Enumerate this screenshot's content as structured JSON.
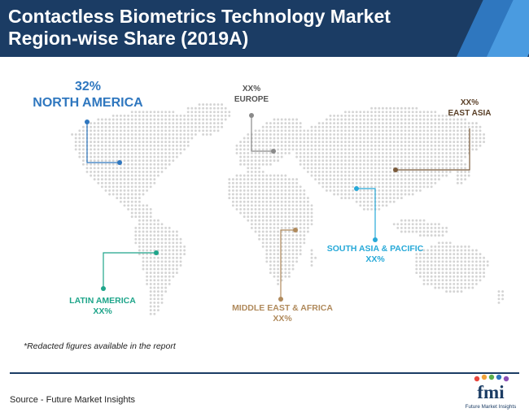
{
  "header": {
    "title_line1": "Contactless Biometrics Technology Market",
    "title_line2": "Region-wise Share (2019A)"
  },
  "colors": {
    "header_bg": "#1b3c64",
    "map_dot": "#d4d4d4",
    "north_america": "#2f77bf",
    "europe": "#8a8a8a",
    "east_asia": "#7a5a3a",
    "south_asia_pacific": "#27a9d8",
    "middle_east_africa": "#b08a5c",
    "latin_america": "#1ea58a"
  },
  "regions": {
    "north_america": {
      "value": "32%",
      "name": "NORTH AMERICA"
    },
    "europe": {
      "value": "XX%",
      "name": "EUROPE"
    },
    "east_asia": {
      "value": "XX%",
      "name": "EAST ASIA"
    },
    "south_asia_pacific": {
      "value": "XX%",
      "name": "SOUTH ASIA & PACIFIC"
    },
    "middle_east_africa": {
      "value": "XX%",
      "name": "MIDDLE EAST & AFRICA"
    },
    "latin_america": {
      "value": "XX%",
      "name": "LATIN AMERICA"
    }
  },
  "footnote": "*Redacted figures available in the report",
  "source": "Source - Future Market Insights",
  "logo": {
    "mark": "fmi",
    "tagline": "Future Market Insights"
  }
}
